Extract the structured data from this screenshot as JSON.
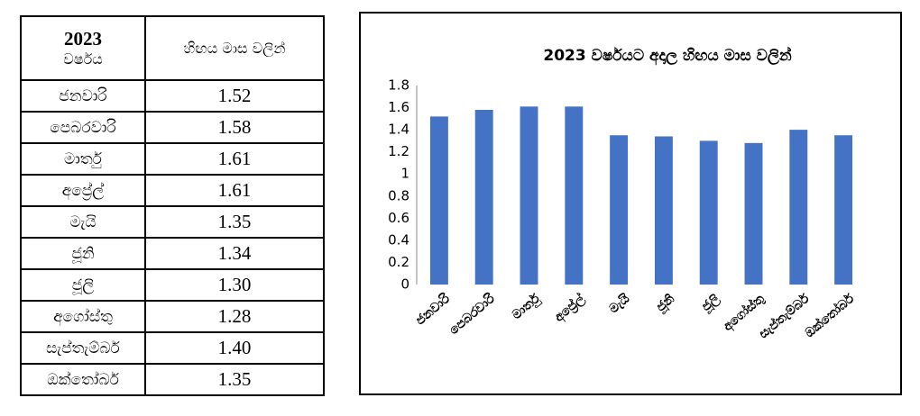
{
  "table": {
    "header": {
      "year": "2023",
      "period": "වර්ෂය",
      "value": "හිඟය මාස වලින්"
    },
    "rows": [
      [
        "ජනවාරි",
        "1.52"
      ],
      [
        "පෙබරවාරි",
        "1.58"
      ],
      [
        "මාර්තු",
        "1.61"
      ],
      [
        "අප්‍රේල්",
        "1.61"
      ],
      [
        "මැයි",
        "1.35"
      ],
      [
        "ජූනි",
        "1.34"
      ],
      [
        "ජූලි",
        "1.30"
      ],
      [
        "අගෝස්තු",
        "1.28"
      ],
      [
        "සැප්තැම්බර්",
        "1.40"
      ],
      [
        "ඔක්තෝබර්",
        "1.35"
      ]
    ]
  },
  "chart_data": {
    "type": "bar",
    "title": "2023 වර්ෂයට අදාල  හිඟය මාස වලින්",
    "categories": [
      "ජනවාරි",
      "පෙබරවාරි",
      "මාර්තු",
      "අප්‍රේල්",
      "මැයි",
      "ජූනි",
      "ජූලි",
      "අගෝස්තු",
      "සැප්තැම්බර්",
      "ඔක්තෝබර්"
    ],
    "values": [
      1.52,
      1.58,
      1.61,
      1.61,
      1.35,
      1.34,
      1.3,
      1.28,
      1.4,
      1.35
    ],
    "color": "#4472c4",
    "ylim": [
      0,
      1.8
    ],
    "yticks": [
      0,
      0.2,
      0.4,
      0.6,
      0.8,
      1,
      1.2,
      1.4,
      1.6,
      1.8
    ],
    "grid": true
  }
}
